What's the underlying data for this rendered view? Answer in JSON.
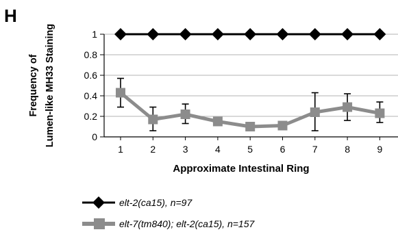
{
  "panel_label": "H",
  "chart_data": {
    "type": "line",
    "xlabel": "Approximate Intestinal Ring",
    "ylabel_lines": [
      "Frequency of",
      "Lumen-like MH33 Staining"
    ],
    "x": [
      1,
      2,
      3,
      4,
      5,
      6,
      7,
      8,
      9
    ],
    "x_tick_labels": [
      "1",
      "2",
      "3",
      "4",
      "5",
      "6",
      "7",
      "8",
      "9"
    ],
    "y_tick_labels": [
      "0",
      "0.2",
      "0.4",
      "0.6",
      "0.8",
      "1"
    ],
    "y_ticks": [
      0,
      0.2,
      0.4,
      0.6,
      0.8,
      1
    ],
    "ylim": [
      0,
      1
    ],
    "grid": "horizontal",
    "legend_position": "bottom-left",
    "series": [
      {
        "name": "elt-2(ca15), n=97",
        "values": [
          1,
          1,
          1,
          1,
          1,
          1,
          1,
          1,
          1
        ],
        "color": "#000000",
        "marker": "diamond"
      },
      {
        "name": "elt-7(tm840); elt-2(ca15), n=157",
        "values": [
          0.43,
          0.17,
          0.22,
          0.15,
          0.1,
          0.11,
          0.24,
          0.29,
          0.23
        ],
        "err_low": [
          0.29,
          0.06,
          0.13,
          0.11,
          0.07,
          0.07,
          0.06,
          0.16,
          0.14
        ],
        "err_high": [
          0.57,
          0.29,
          0.32,
          0.19,
          0.13,
          0.15,
          0.43,
          0.42,
          0.34
        ],
        "color": "#8c8c8c",
        "marker": "square"
      }
    ]
  }
}
